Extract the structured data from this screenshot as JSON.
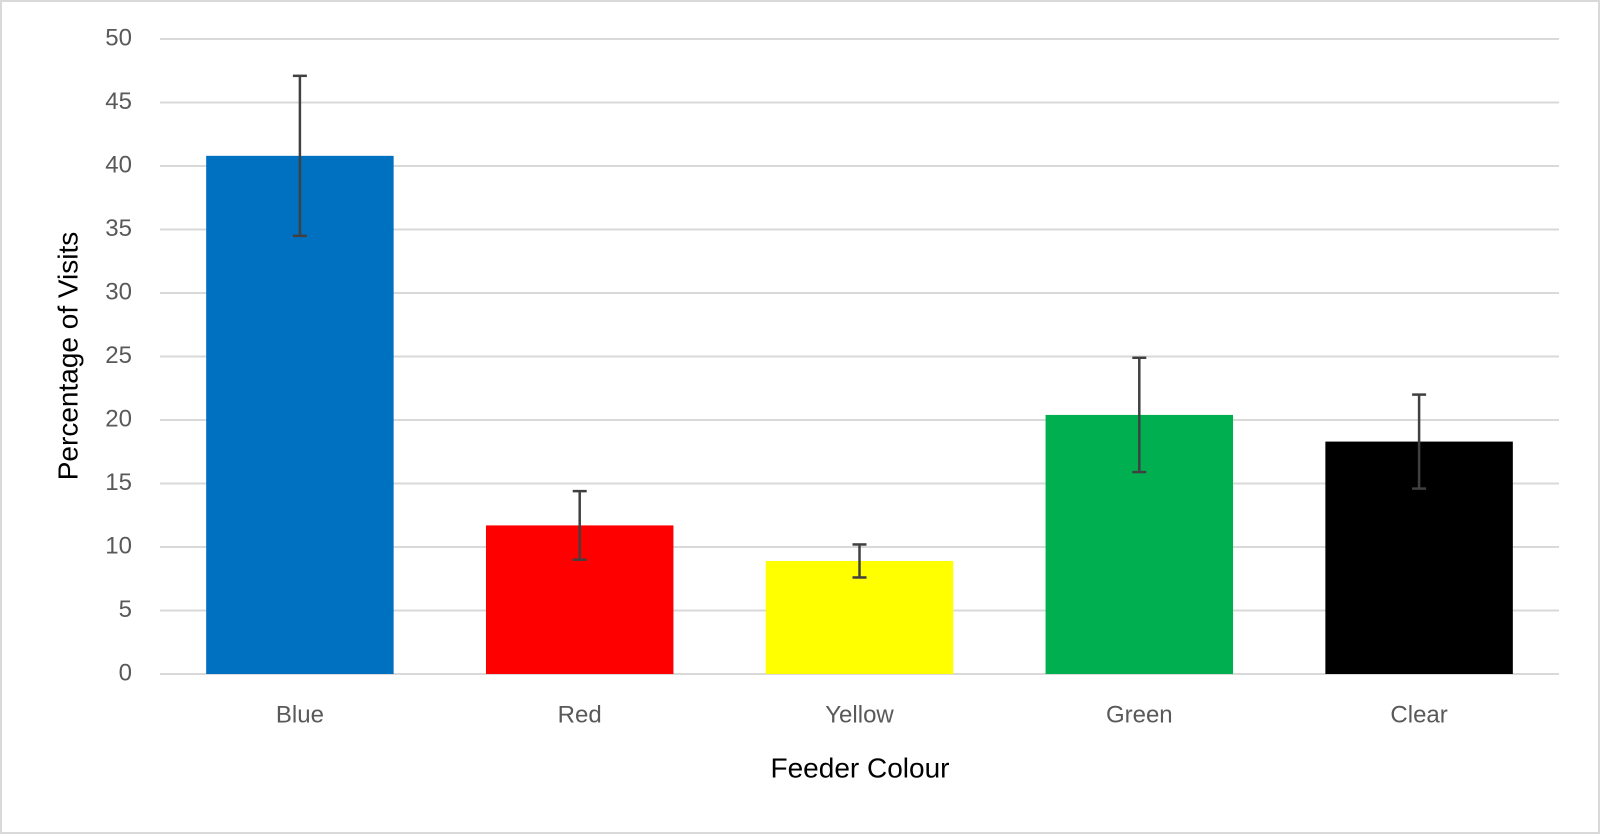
{
  "chart_data": {
    "type": "bar",
    "x_label": "Feeder Colour",
    "y_label": "Percentage of Visits",
    "categories": [
      "Blue",
      "Red",
      "Yellow",
      "Green",
      "Clear"
    ],
    "values": [
      40.8,
      11.7,
      8.9,
      20.4,
      18.3
    ],
    "errors": [
      6.3,
      2.7,
      1.3,
      4.5,
      3.7
    ],
    "colors": [
      "#0070c0",
      "#ff0000",
      "#ffff00",
      "#00b050",
      "#000000"
    ],
    "ylim": [
      0,
      50
    ],
    "yticks": [
      0,
      5,
      10,
      15,
      20,
      25,
      30,
      35,
      40,
      45,
      50
    ],
    "grid": true
  }
}
